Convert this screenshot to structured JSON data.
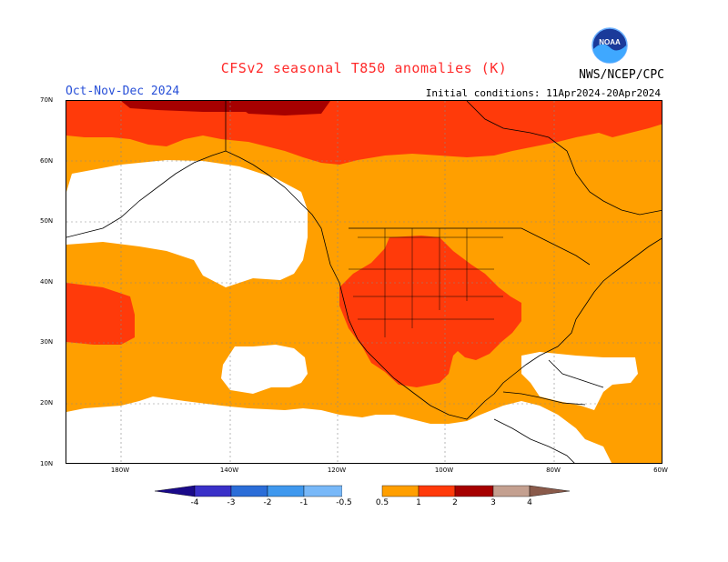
{
  "header": {
    "title": "CFSv2 seasonal T850 anomalies (K)",
    "period": "Oct-Nov-Dec 2024",
    "initial_conditions": "Initial conditions: 11Apr2024-20Apr2024",
    "org": "NWS/NCEP/CPC",
    "logo_text": "NOAA"
  },
  "axes": {
    "lat_labels": [
      "70N",
      "60N",
      "50N",
      "40N",
      "30N",
      "20N",
      "10N"
    ],
    "lon_labels": [
      "180W",
      "140W",
      "120W",
      "100W",
      "80W",
      "60W"
    ]
  },
  "colorbar": {
    "labels": [
      "-4",
      "-3",
      "-2",
      "-1",
      "-0.5",
      "0.5",
      "1",
      "2",
      "3",
      "4"
    ],
    "colors": [
      "#1a0a8a",
      "#3a30c8",
      "#2b6dd8",
      "#3f98ee",
      "#78b8f8",
      "#ffffff",
      "#ff9f00",
      "#ff3a0a",
      "#a60000",
      "#c4a090",
      "#8a5a4a"
    ]
  }
}
